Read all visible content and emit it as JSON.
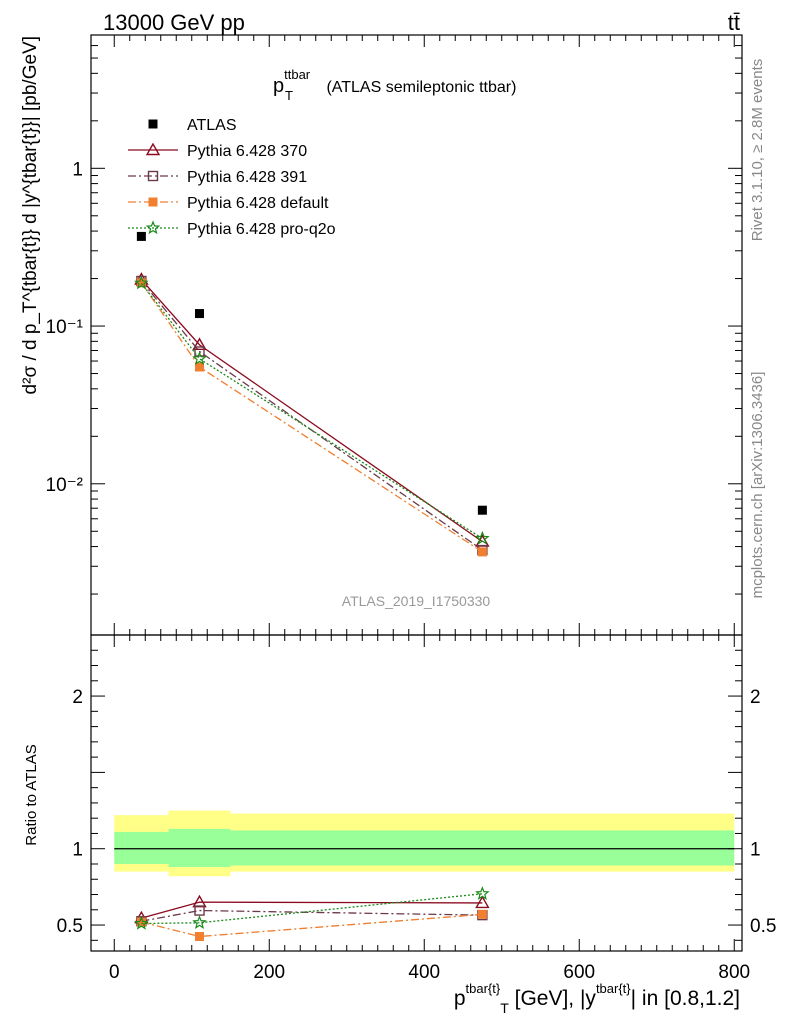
{
  "header": {
    "energy_label": "13000 GeV pp",
    "process_label": "tt̄"
  },
  "side_text": {
    "rivet": "Rivet 3.1.10, ≥ 2.8M events",
    "mcplots": "mcplots.cern.ch [arXiv:1306.3436]"
  },
  "watermark": "ATLAS_2019_I1750330",
  "chart_data": [
    {
      "type": "line",
      "panel": "main",
      "title_main": "p",
      "title_sup": "ttbar",
      "title_sub": "T",
      "title_rest": " (ATLAS semileptonic ttbar)",
      "ylabel": "d²σ / d p_T^{tbar{t}} d |y^{tbar{t}}| [pb/GeV]",
      "yscale": "log",
      "ylim": [
        0.0011,
        7
      ],
      "xlim": [
        -30,
        810
      ],
      "ytick_labels": [
        "1",
        "10⁻¹",
        "10⁻²"
      ],
      "legend_position": "top-left",
      "x": [
        35,
        110,
        475
      ],
      "series": [
        {
          "name": "ATLAS",
          "values": [
            0.37,
            0.12,
            0.0068
          ],
          "color": "#000000",
          "marker": "square-filled",
          "line": "none"
        },
        {
          "name": "Pythia 6.428 370",
          "values": [
            0.197,
            0.076,
            0.0043
          ],
          "color": "#8b0a1e",
          "marker": "triangle-open",
          "line": "solid"
        },
        {
          "name": "Pythia 6.428 391",
          "values": [
            0.193,
            0.069,
            0.0038
          ],
          "color": "#6b3a4a",
          "marker": "square-open",
          "line": "dashdot"
        },
        {
          "name": "Pythia 6.428 default",
          "values": [
            0.188,
            0.055,
            0.0037
          ],
          "color": "#f07f30",
          "marker": "square-filled",
          "line": "dashdot"
        },
        {
          "name": "Pythia 6.428 pro-q2o",
          "values": [
            0.187,
            0.062,
            0.0045
          ],
          "color": "#1a8a1a",
          "marker": "star",
          "line": "dotted"
        }
      ]
    },
    {
      "type": "line",
      "panel": "ratio",
      "ylabel": "Ratio to ATLAS",
      "xlabel_main": "p",
      "xlabel_sup1": "tbar{t}",
      "xlabel_sub": "T",
      "xlabel_mid": " [GeV], |y",
      "xlabel_sup2": "tbar{t}",
      "xlabel_end": "| in [0.8,1.2]",
      "ylim": [
        0.33,
        2.4
      ],
      "xlim": [
        -30,
        810
      ],
      "x_ticks": [
        0,
        200,
        400,
        600,
        800
      ],
      "y_ticks": [
        0.5,
        1,
        2
      ],
      "x": [
        35,
        110,
        475
      ],
      "bands": {
        "bins": [
          [
            0,
            70
          ],
          [
            70,
            150
          ],
          [
            150,
            800
          ]
        ],
        "inner": [
          [
            0.9,
            1.11
          ],
          [
            0.88,
            1.13
          ],
          [
            0.89,
            1.12
          ]
        ],
        "outer": [
          [
            0.85,
            1.22
          ],
          [
            0.82,
            1.25
          ],
          [
            0.85,
            1.23
          ]
        ],
        "inner_color": "#99ff99",
        "outer_color": "#ffff88"
      },
      "series": [
        {
          "name": "Pythia 6.428 370",
          "values": [
            0.545,
            0.65,
            0.645
          ]
        },
        {
          "name": "Pythia 6.428 391",
          "values": [
            0.525,
            0.595,
            0.565
          ]
        },
        {
          "name": "Pythia 6.428 default",
          "values": [
            0.52,
            0.425,
            0.57
          ]
        },
        {
          "name": "Pythia 6.428 pro-q2o",
          "values": [
            0.51,
            0.515,
            0.705
          ]
        }
      ]
    }
  ]
}
